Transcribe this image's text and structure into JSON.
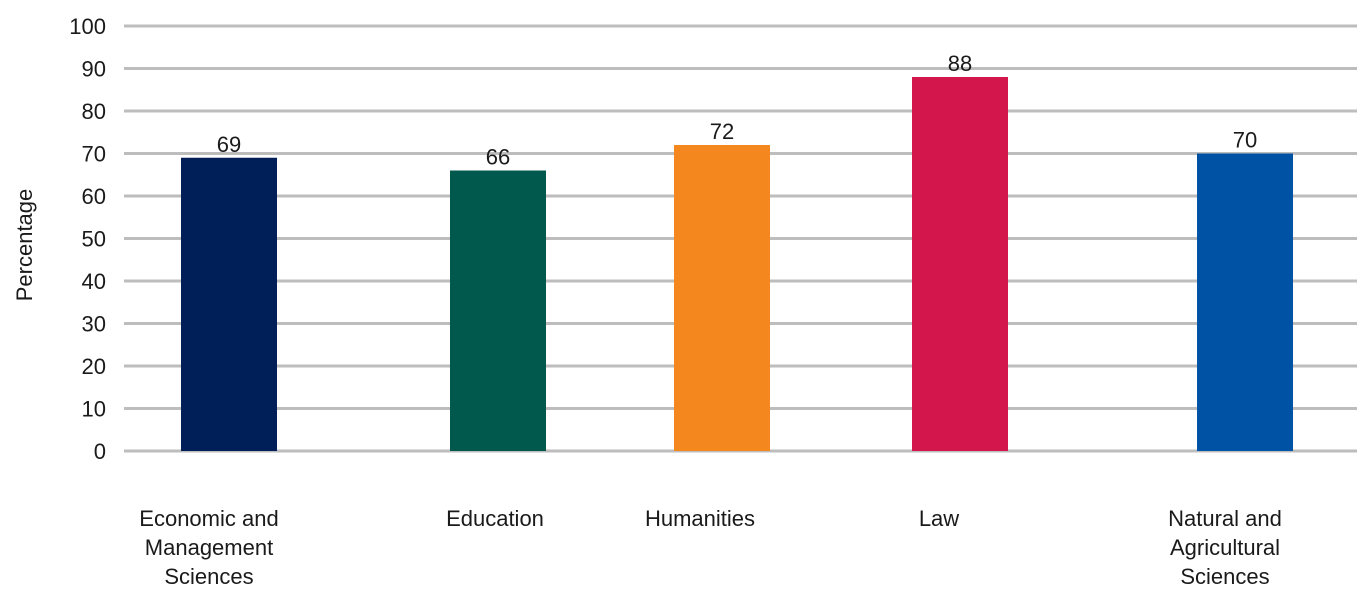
{
  "chart_data": {
    "type": "bar",
    "title": "",
    "xlabel": "",
    "ylabel": "Percentage",
    "ylim": [
      0,
      100
    ],
    "yticks": [
      0,
      10,
      20,
      30,
      40,
      50,
      60,
      70,
      80,
      90,
      100
    ],
    "grid": true,
    "categories": [
      [
        "Economic and",
        "Management",
        "Sciences"
      ],
      [
        "Education"
      ],
      [
        "Humanities"
      ],
      [
        "Law"
      ],
      [
        "Natural and",
        "Agricultural",
        "Sciences"
      ]
    ],
    "values": [
      69,
      66,
      72,
      88,
      70
    ],
    "colors": [
      "#001e58",
      "#00594c",
      "#f5871f",
      "#d3164b",
      "#0052a4"
    ]
  }
}
